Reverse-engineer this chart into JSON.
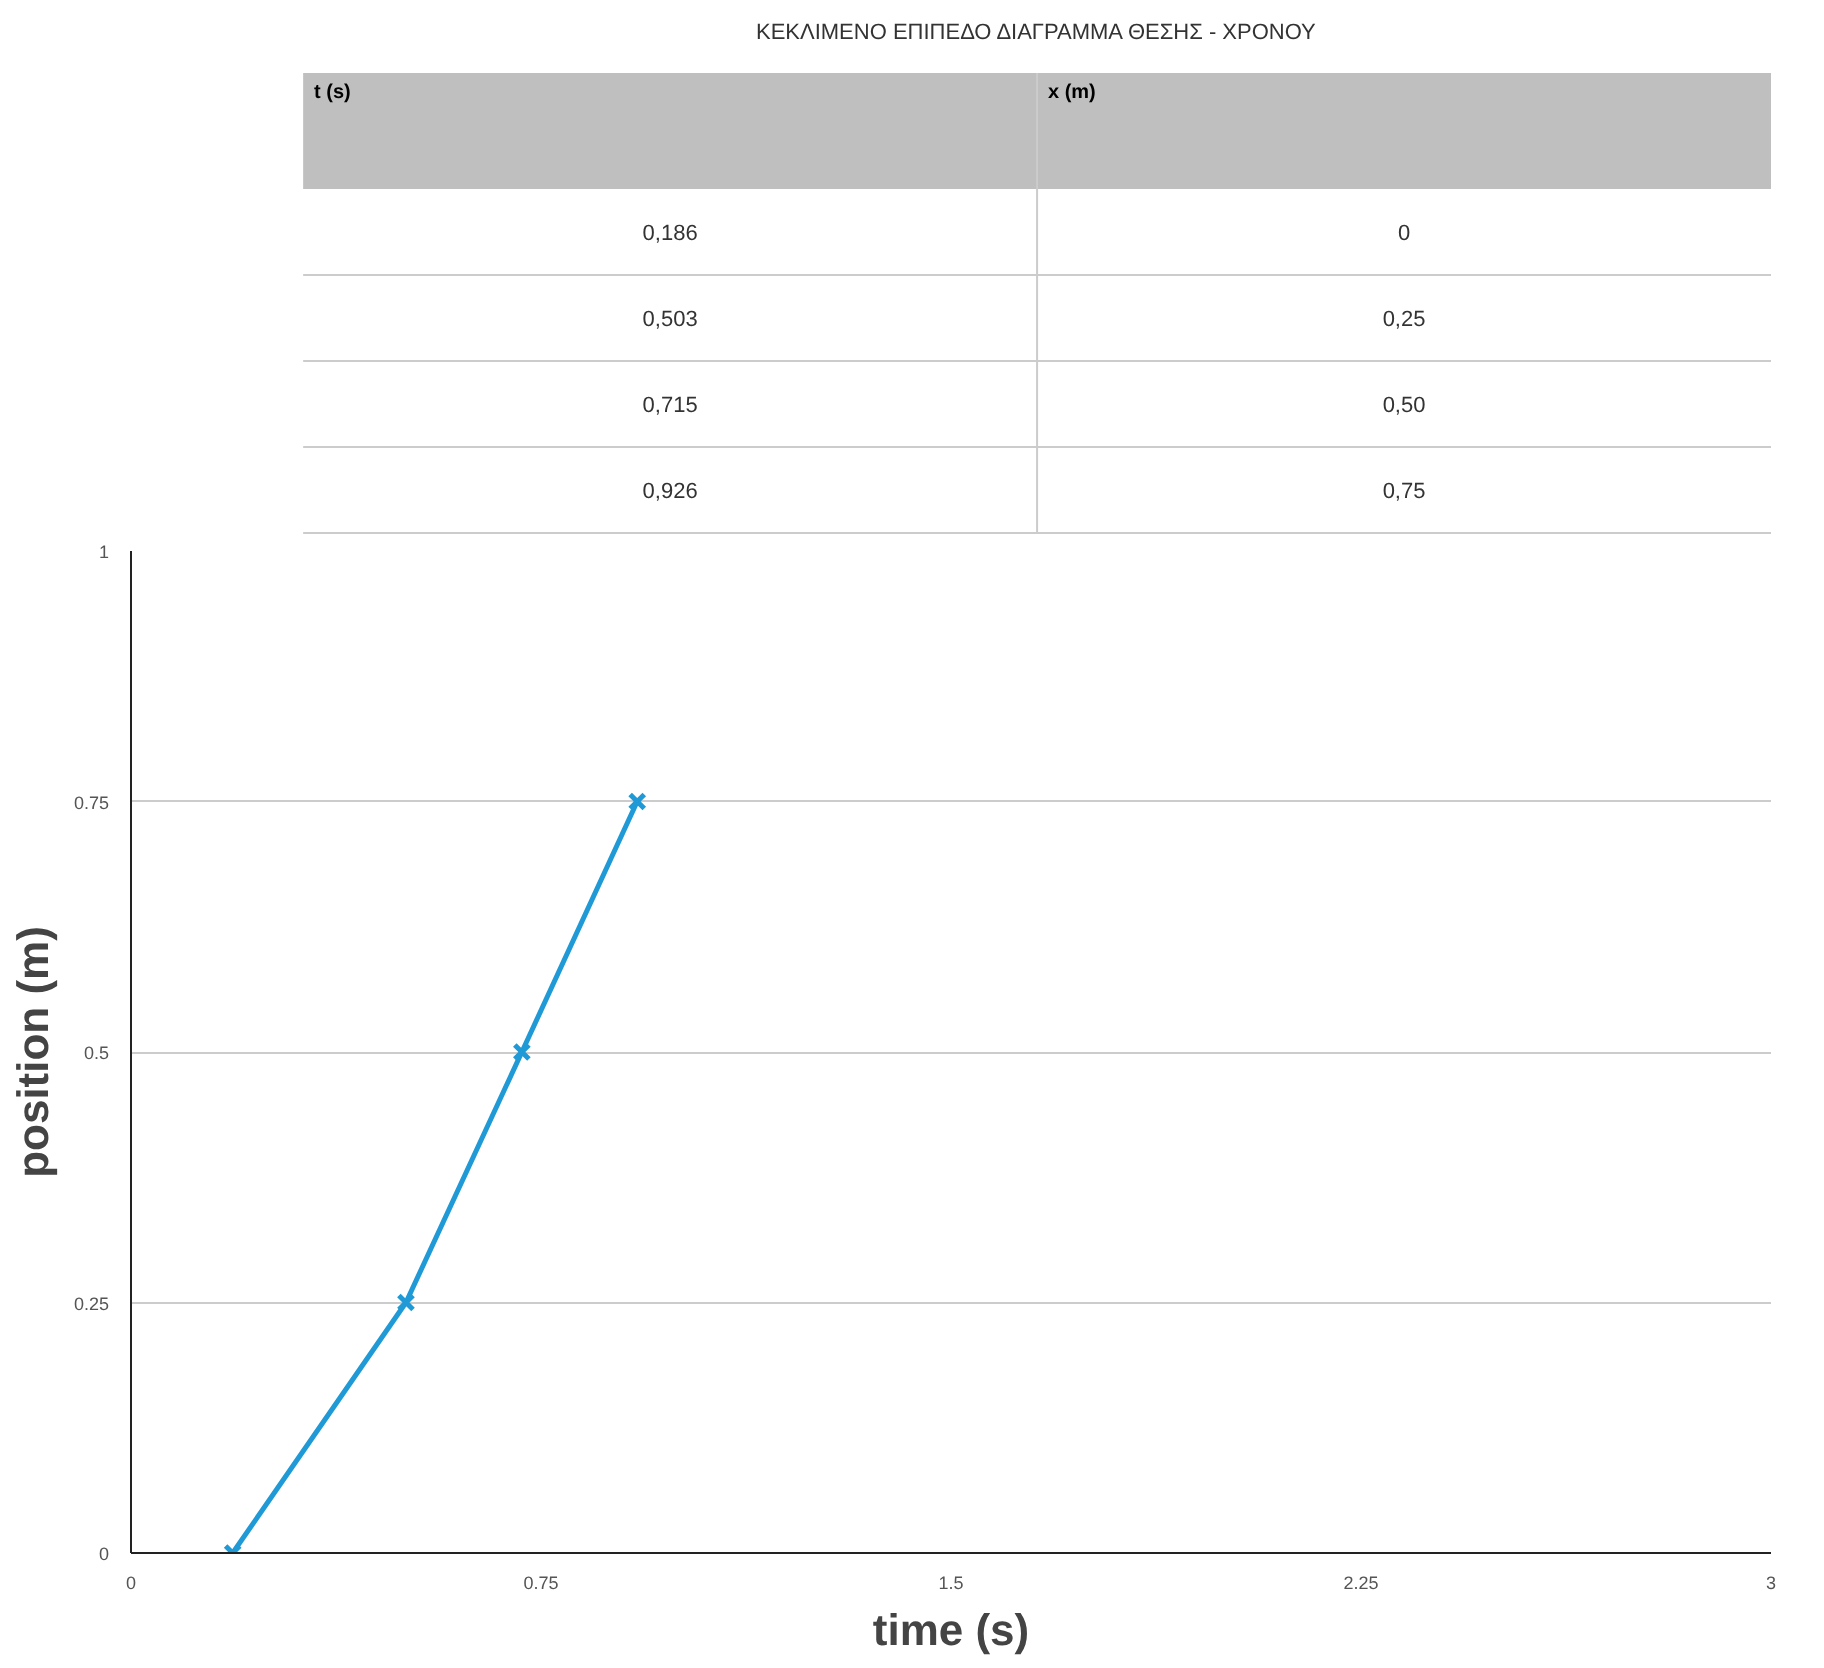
{
  "chart_data": {
    "type": "line",
    "title": "ΚΕΚΛΙΜΕΝΟ ΕΠΙΠΕΔΟ ΔΙΑΓΡΑΜΜΑ ΘΕΣΗΣ - ΧΡΟΝΟΥ",
    "xlabel": "time (s)",
    "ylabel": "position (m)",
    "annotations": [
      "t (s)",
      "x (m)",
      "0,186",
      "0",
      "0,503",
      "0,25",
      "0,715",
      "0,50",
      "0,926",
      "0,75"
    ],
    "xlim": [
      0,
      3
    ],
    "xticks": [
      0,
      0.75,
      1.5,
      2.25,
      3
    ],
    "ylim": [
      0,
      1
    ],
    "yticks": [
      0,
      0.25,
      0.5,
      0.75,
      1
    ],
    "grid": "y",
    "marker": "cross",
    "line_style": "solid",
    "series": [
      {
        "color": "#1f9ad6",
        "x": [
          0.186,
          0.503,
          0.715,
          0.926
        ],
        "values": [
          0,
          0.25,
          0.5,
          0.75
        ]
      }
    ]
  }
}
